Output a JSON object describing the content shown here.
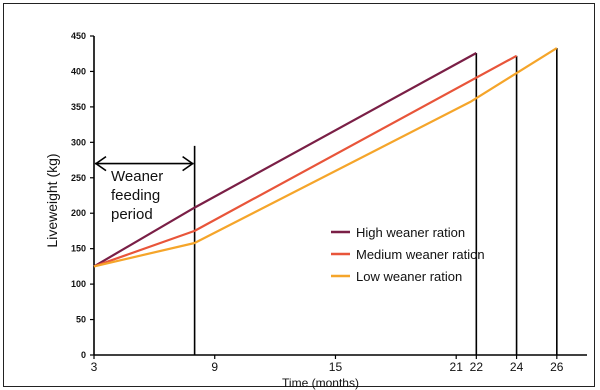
{
  "chart_data": {
    "type": "line",
    "xlabel": "Time (months)",
    "ylabel": "Liveweight (kg)",
    "xlim": [
      3,
      27.5
    ],
    "ylim": [
      0,
      450
    ],
    "x_ticks": [
      3,
      9,
      15,
      21,
      22,
      24,
      26
    ],
    "y_ticks": [
      0,
      50,
      100,
      150,
      200,
      250,
      300,
      350,
      400,
      450
    ],
    "grid": false,
    "legend_position": "center-right",
    "series": [
      {
        "name": "High weaner ration",
        "color": "#7a1f46",
        "points": [
          [
            3,
            125
          ],
          [
            8,
            208
          ],
          [
            22,
            426
          ]
        ]
      },
      {
        "name": "Medium weaner ration",
        "color": "#e8553a",
        "points": [
          [
            3,
            125
          ],
          [
            8,
            175
          ],
          [
            24,
            422
          ]
        ]
      },
      {
        "name": "Low weaner ration",
        "color": "#f5a52a",
        "points": [
          [
            3,
            125
          ],
          [
            8,
            158
          ],
          [
            21.7,
            357
          ],
          [
            26,
            433
          ]
        ]
      }
    ],
    "annotations": [
      {
        "type": "text",
        "lines": [
          "Weaner",
          "feeding",
          "period"
        ]
      },
      {
        "type": "double_arrow",
        "from_x": 3,
        "to_x": 8,
        "y": 270
      }
    ],
    "vertical_markers": [
      {
        "x": 8,
        "y_top": 295
      },
      {
        "x": 22,
        "y_top": 426
      },
      {
        "x": 24,
        "y_top": 422
      },
      {
        "x": 26,
        "y_top": 433
      }
    ]
  }
}
